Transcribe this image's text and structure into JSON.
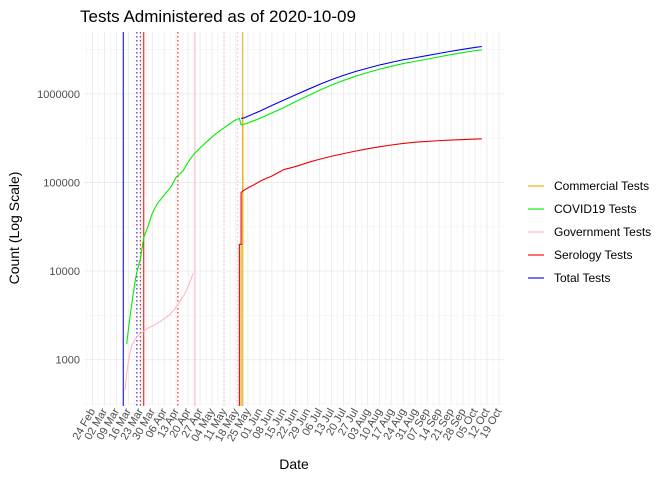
{
  "chart_data": {
    "type": "line",
    "title": "Tests Administered as of 2020-10-09",
    "xlabel": "Date",
    "ylabel": "Count (Log Scale)",
    "y_scale": "log",
    "ylim": [
      300,
      5000000
    ],
    "xlim": [
      "2020-02-19",
      "2020-10-22"
    ],
    "y_ticks": [
      1000,
      10000,
      100000,
      1000000
    ],
    "y_tick_labels": [
      "1000",
      "10000",
      "100000",
      "1000000"
    ],
    "x_ticks": [
      "2020-02-24",
      "2020-03-02",
      "2020-03-09",
      "2020-03-16",
      "2020-03-23",
      "2020-03-30",
      "2020-04-06",
      "2020-04-13",
      "2020-04-20",
      "2020-04-27",
      "2020-05-04",
      "2020-05-11",
      "2020-05-18",
      "2020-05-25",
      "2020-06-01",
      "2020-06-08",
      "2020-06-15",
      "2020-06-22",
      "2020-06-29",
      "2020-07-06",
      "2020-07-13",
      "2020-07-20",
      "2020-07-27",
      "2020-08-03",
      "2020-08-10",
      "2020-08-17",
      "2020-08-24",
      "2020-08-31",
      "2020-09-07",
      "2020-09-14",
      "2020-09-21",
      "2020-09-28",
      "2020-10-05",
      "2020-10-12",
      "2020-10-19"
    ],
    "x_tick_labels": [
      "24 Feb",
      "02 Mar",
      "09 Mar",
      "16 Mar",
      "23 Mar",
      "30 Mar",
      "06 Apr",
      "13 Apr",
      "20 Apr",
      "27 Apr",
      "04 May",
      "11 May",
      "18 May",
      "25 May",
      "01 Jun",
      "08 Jun",
      "15 Jun",
      "22 Jun",
      "29 Jun",
      "06 Jul",
      "13 Jul",
      "20 Jul",
      "27 Jul",
      "03 Aug",
      "10 Aug",
      "17 Aug",
      "24 Aug",
      "31 Aug",
      "07 Sep",
      "14 Sep",
      "21 Sep",
      "28 Sep",
      "05 Oct",
      "12 Oct",
      "19 Oct"
    ],
    "grid": true,
    "legend_position": "right",
    "series": [
      {
        "name": "Commercial Tests",
        "color": "#E6AB02",
        "x": [
          "2020-05-21",
          "2020-05-21",
          "2020-05-21",
          "2020-05-22",
          "2020-05-22"
        ],
        "y": [
          300,
          1200,
          20000,
          20000,
          600000
        ]
      },
      {
        "name": "COVID19 Tests",
        "color": "#00EE00",
        "x": [
          "2020-03-15",
          "2020-03-16",
          "2020-03-17",
          "2020-03-18",
          "2020-03-19",
          "2020-03-20",
          "2020-03-21",
          "2020-03-22",
          "2020-03-23",
          "2020-03-24",
          "2020-03-25",
          "2020-03-27",
          "2020-03-30",
          "2020-04-02",
          "2020-04-06",
          "2020-04-10",
          "2020-04-13",
          "2020-04-17",
          "2020-04-20",
          "2020-04-23",
          "2020-04-27",
          "2020-05-01",
          "2020-05-05",
          "2020-05-09",
          "2020-05-13",
          "2020-05-17",
          "2020-05-20",
          "2020-05-21",
          "2020-05-22",
          "2020-05-25",
          "2020-06-01",
          "2020-06-08",
          "2020-06-15",
          "2020-06-22",
          "2020-06-29",
          "2020-07-06",
          "2020-07-13",
          "2020-07-20",
          "2020-07-27",
          "2020-08-03",
          "2020-08-10",
          "2020-08-17",
          "2020-08-24",
          "2020-08-31",
          "2020-09-07",
          "2020-09-14",
          "2020-09-21",
          "2020-09-28",
          "2020-10-05",
          "2020-10-09"
        ],
        "y": [
          1500,
          2200,
          3100,
          4300,
          5800,
          7800,
          9800,
          11500,
          13800,
          18000,
          24000,
          30000,
          45000,
          58000,
          72000,
          90000,
          115000,
          135000,
          170000,
          205000,
          245000,
          290000,
          340000,
          390000,
          440000,
          500000,
          530000,
          450000,
          450000,
          470000,
          530000,
          610000,
          700000,
          820000,
          950000,
          1100000,
          1260000,
          1420000,
          1580000,
          1740000,
          1900000,
          2050000,
          2200000,
          2330000,
          2470000,
          2620000,
          2780000,
          2930000,
          3080000,
          3150000
        ]
      },
      {
        "name": "Government Tests",
        "color": "#FFB6C1",
        "x": [
          "2020-03-14",
          "2020-03-15",
          "2020-03-16",
          "2020-03-17",
          "2020-03-18",
          "2020-03-20",
          "2020-03-22",
          "2020-03-25",
          "2020-03-28",
          "2020-03-31",
          "2020-04-03",
          "2020-04-06",
          "2020-04-09",
          "2020-04-12",
          "2020-04-15",
          "2020-04-18",
          "2020-04-21",
          "2020-04-23"
        ],
        "y": [
          450,
          700,
          950,
          1200,
          1450,
          1700,
          1900,
          2100,
          2300,
          2450,
          2650,
          2900,
          3200,
          3700,
          4500,
          5500,
          7500,
          9500
        ]
      },
      {
        "name": "Serology Tests",
        "color": "#EE0000",
        "x": [
          "2020-05-20",
          "2020-05-20",
          "2020-05-20",
          "2020-05-21",
          "2020-05-21",
          "2020-05-22",
          "2020-05-25",
          "2020-05-28",
          "2020-06-01",
          "2020-06-05",
          "2020-06-08",
          "2020-06-12",
          "2020-06-15",
          "2020-06-20",
          "2020-06-25",
          "2020-06-29",
          "2020-07-06",
          "2020-07-13",
          "2020-07-20",
          "2020-07-27",
          "2020-08-03",
          "2020-08-10",
          "2020-08-17",
          "2020-08-24",
          "2020-08-31",
          "2020-09-07",
          "2020-09-14",
          "2020-09-21",
          "2020-09-28",
          "2020-10-05",
          "2020-10-09"
        ],
        "y": [
          300,
          1000,
          20000,
          20000,
          77000,
          80000,
          87000,
          93000,
          103000,
          112000,
          118000,
          130000,
          140000,
          148000,
          158000,
          168000,
          183000,
          198000,
          212000,
          226000,
          240000,
          253000,
          265000,
          276000,
          285000,
          291000,
          297000,
          301000,
          305000,
          309000,
          311000
        ]
      },
      {
        "name": "Total Tests",
        "color": "#0000EE",
        "x": [
          "2020-05-21",
          "2020-05-22",
          "2020-05-25",
          "2020-06-01",
          "2020-06-08",
          "2020-06-15",
          "2020-06-22",
          "2020-06-29",
          "2020-07-06",
          "2020-07-13",
          "2020-07-20",
          "2020-07-27",
          "2020-08-03",
          "2020-08-10",
          "2020-08-17",
          "2020-08-24",
          "2020-08-31",
          "2020-09-07",
          "2020-09-14",
          "2020-09-21",
          "2020-09-28",
          "2020-10-05",
          "2020-10-09"
        ],
        "y": [
          530000,
          530000,
          560000,
          640000,
          740000,
          850000,
          980000,
          1120000,
          1280000,
          1450000,
          1620000,
          1790000,
          1950000,
          2120000,
          2270000,
          2430000,
          2560000,
          2710000,
          2870000,
          3030000,
          3190000,
          3350000,
          3430000
        ]
      }
    ],
    "reference_lines": [
      {
        "x": "2020-03-13",
        "color": "#0000EE",
        "style": "solid"
      },
      {
        "x": "2020-03-21",
        "color": "#0000EE",
        "style": "dotted"
      },
      {
        "x": "2020-03-23",
        "color": "#EE0000",
        "style": "dotted"
      },
      {
        "x": "2020-03-25",
        "color": "#EE0000",
        "style": "solid"
      },
      {
        "x": "2020-04-14",
        "color": "#EE0000",
        "style": "dotted"
      },
      {
        "x": "2020-04-24",
        "color": "#FFB6C1",
        "style": "solid"
      },
      {
        "x": "2020-05-11",
        "color": "#FFB6C1",
        "style": "dotted"
      },
      {
        "x": "2020-05-19",
        "color": "#FFB6C1",
        "style": "dotted"
      },
      {
        "x": "2020-05-22",
        "color": "#E6AB02",
        "style": "solid"
      }
    ]
  }
}
